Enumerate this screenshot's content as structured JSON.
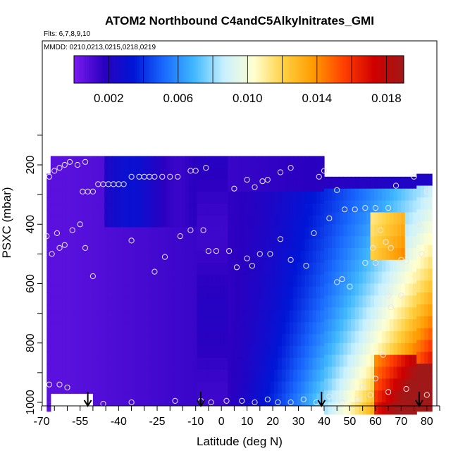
{
  "chart_data": {
    "type": "heatmap",
    "title": "ATOM2 Northbound C4andC5Alkylnitrates_GMI",
    "flights_note": "Flts: 6,7,8,9,10",
    "dates_note": "MMDD: 0210,0213,0215,0218,0219",
    "xlabel": "Latitude (deg N)",
    "ylabel": "PSXC (mbar)",
    "xlim": [
      -70,
      85
    ],
    "ylim": [
      1010,
      90
    ],
    "y_reversed": true,
    "x_ticks": [
      -70,
      -55,
      -40,
      -25,
      -10,
      0,
      10,
      20,
      30,
      40,
      50,
      60,
      70,
      80
    ],
    "y_ticks": [
      200,
      400,
      600,
      800,
      1000
    ],
    "colorbar": {
      "range": [
        0,
        0.019
      ],
      "ticks": [
        0.002,
        0.006,
        0.01,
        0.014,
        0.018
      ],
      "tick_labels": [
        "0.002",
        "0.006",
        "0.010",
        "0.014",
        "0.018"
      ],
      "colors": [
        "#7a1cf0",
        "#2a00c0",
        "#0016d6",
        "#1a6aff",
        "#40b8ff",
        "#c8f0ff",
        "#ffffd0",
        "#ffd040",
        "#ff9a00",
        "#ff4000",
        "#d00000",
        "#a01818"
      ]
    },
    "arrow_latitudes": [
      -52,
      -8,
      39,
      77
    ],
    "samples": [
      [
        -67,
        240
      ],
      [
        -65,
        220
      ],
      [
        -63,
        210
      ],
      [
        -61,
        200
      ],
      [
        -59,
        190
      ],
      [
        -56,
        200
      ],
      [
        -53,
        190
      ],
      [
        -54,
        290
      ],
      [
        -52,
        290
      ],
      [
        -50,
        290
      ],
      [
        -48,
        265
      ],
      [
        -46,
        265
      ],
      [
        -44,
        265
      ],
      [
        -42,
        265
      ],
      [
        -40,
        265
      ],
      [
        -38,
        265
      ],
      [
        -35,
        240
      ],
      [
        -32,
        240
      ],
      [
        -30,
        240
      ],
      [
        -28,
        240
      ],
      [
        -26,
        240
      ],
      [
        -23,
        240
      ],
      [
        -20,
        240
      ],
      [
        -17,
        240
      ],
      [
        -12,
        220
      ],
      [
        -10,
        220
      ],
      [
        -6,
        210
      ],
      [
        5,
        280
      ],
      [
        10,
        250
      ],
      [
        13,
        275
      ],
      [
        16,
        255
      ],
      [
        18,
        250
      ],
      [
        23,
        225
      ],
      [
        27,
        210
      ],
      [
        40,
        220
      ],
      [
        -26,
        560
      ],
      [
        -22,
        510
      ],
      [
        -16,
        440
      ],
      [
        -12,
        420
      ],
      [
        -7,
        420
      ],
      [
        -5,
        490
      ],
      [
        -2,
        490
      ],
      [
        3,
        490
      ],
      [
        6,
        545
      ],
      [
        10,
        515
      ],
      [
        12,
        540
      ],
      [
        15,
        500
      ],
      [
        19,
        500
      ],
      [
        23,
        450
      ],
      [
        27,
        520
      ],
      [
        33,
        540
      ],
      [
        36,
        430
      ],
      [
        42,
        380
      ],
      [
        48,
        350
      ],
      [
        52,
        350
      ],
      [
        56,
        345
      ],
      [
        60,
        345
      ],
      [
        65,
        345
      ],
      [
        -66,
        500
      ],
      [
        -63,
        480
      ],
      [
        -61,
        470
      ],
      [
        -58,
        420
      ],
      [
        -55,
        400
      ],
      [
        -53,
        480
      ],
      [
        -50,
        575
      ],
      [
        -35,
        455
      ],
      [
        -68,
        440
      ],
      [
        -64,
        430
      ],
      [
        38,
        240
      ],
      [
        45,
        285
      ],
      [
        45,
        595
      ],
      [
        47,
        585
      ],
      [
        50,
        610
      ],
      [
        56,
        530
      ],
      [
        60,
        530
      ],
      [
        64,
        460
      ],
      [
        66,
        480
      ],
      [
        68,
        270
      ],
      [
        70,
        520
      ],
      [
        72,
        525
      ],
      [
        75,
        240
      ],
      [
        77,
        400
      ],
      [
        78,
        500
      ],
      [
        80,
        290
      ],
      [
        59,
        480
      ],
      [
        62,
        420
      ],
      [
        65,
        640
      ],
      [
        70,
        640
      ],
      [
        66,
        680
      ],
      [
        63,
        840
      ],
      [
        60,
        920
      ],
      [
        55,
        950
      ],
      [
        42,
        980
      ],
      [
        -67,
        940
      ],
      [
        -63,
        940
      ],
      [
        -60,
        950
      ],
      [
        -46,
        1005
      ],
      [
        -35,
        1000
      ],
      [
        -18,
        995
      ],
      [
        -8,
        995
      ],
      [
        -4,
        1000
      ],
      [
        2,
        995
      ],
      [
        8,
        995
      ],
      [
        13,
        1000
      ],
      [
        18,
        990
      ],
      [
        22,
        1000
      ],
      [
        27,
        1000
      ],
      [
        32,
        990
      ],
      [
        37,
        1000
      ],
      [
        47,
        1000
      ],
      [
        53,
        990
      ],
      [
        58,
        975
      ],
      [
        65,
        965
      ],
      [
        72,
        955
      ],
      [
        80,
        975
      ]
    ]
  }
}
